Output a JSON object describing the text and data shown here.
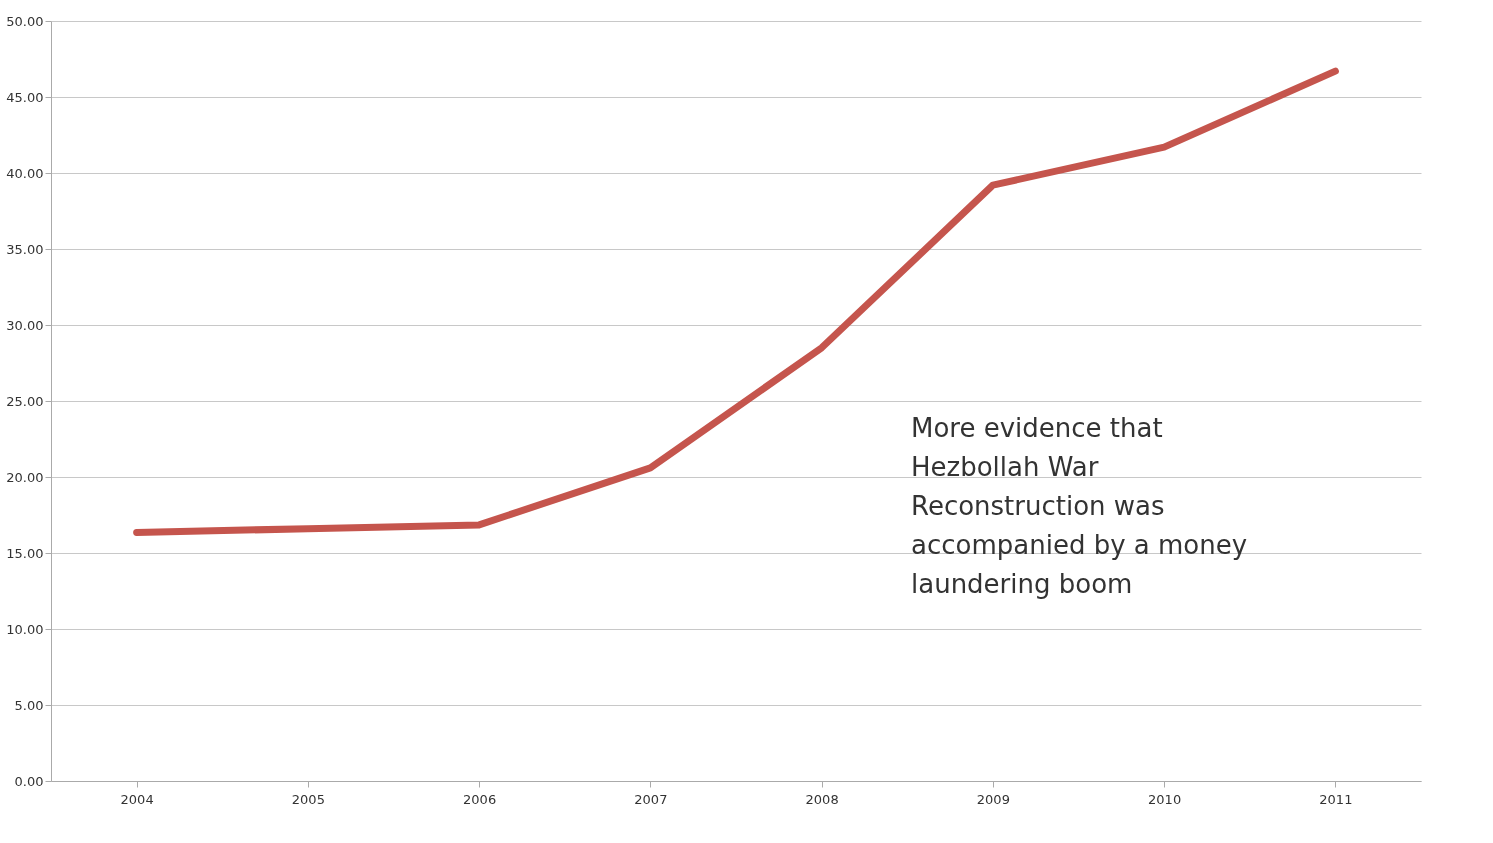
{
  "chart_data": {
    "type": "line",
    "categories": [
      "2004",
      "2005",
      "2006",
      "2007",
      "2008",
      "2009",
      "2010",
      "2011"
    ],
    "series": [
      {
        "color": "#c5554d",
        "values": [
          16.35,
          16.6,
          16.85,
          20.6,
          28.5,
          39.2,
          41.7,
          46.7
        ]
      }
    ],
    "ylim": [
      0,
      50
    ],
    "yticks": [
      {
        "value": 0,
        "label": "0.00"
      },
      {
        "value": 5,
        "label": "5.00"
      },
      {
        "value": 10,
        "label": "10.00"
      },
      {
        "value": 15,
        "label": "15.00"
      },
      {
        "value": 20,
        "label": "20.00"
      },
      {
        "value": 25,
        "label": "25.00"
      },
      {
        "value": 30,
        "label": "30.00"
      },
      {
        "value": 35,
        "label": "35.00"
      },
      {
        "value": 40,
        "label": "40.00"
      },
      {
        "value": 45,
        "label": "45.00"
      },
      {
        "value": 50,
        "label": "50.00"
      }
    ],
    "grid": "y",
    "legend": false,
    "marker": "none",
    "line_style": "solid",
    "annotations": [
      "More evidence that\nHezbollah War\nReconstruction was\naccompanied by a money\nlaundering boom"
    ]
  }
}
